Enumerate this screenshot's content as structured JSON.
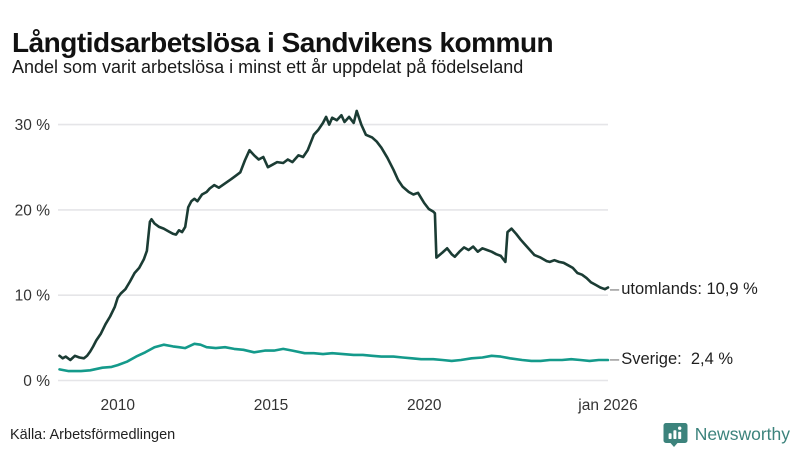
{
  "header": {
    "title": "Långtidsarbetslösa i Sandvikens kommun",
    "subtitle": "Andel som varit arbetslösa i minst ett år uppdelat på födelseland"
  },
  "footer": {
    "source": "Källa: Arbetsförmedlingen",
    "brand": "Newsworthy"
  },
  "colors": {
    "series_utomlands": "#1b3c34",
    "series_sverige": "#149a8b",
    "gridline": "#e5e5e8",
    "axis_text": "#333333",
    "brand_teal": "#3c837c",
    "label_dash": "#7a7a7a"
  },
  "chart_data": {
    "type": "line",
    "title": "Långtidsarbetslösa i Sandvikens kommun",
    "subtitle": "Andel som varit arbetslösa i minst ett år uppdelat på födelseland",
    "xlabel": "",
    "ylabel": "",
    "grid": "horizontal",
    "legend_position": "right-of-line-ends",
    "legend_dash": "–",
    "xlim": [
      2008.05,
      2026.0
    ],
    "ylim": [
      0,
      32
    ],
    "x_ticks": [
      {
        "value": 2010,
        "label": "2010"
      },
      {
        "value": 2015,
        "label": "2015"
      },
      {
        "value": 2020,
        "label": "2020"
      },
      {
        "value": 2026,
        "label": "jan 2026"
      }
    ],
    "y_ticks": [
      {
        "value": 0,
        "label": "0 %"
      },
      {
        "value": 10,
        "label": "10 %"
      },
      {
        "value": 20,
        "label": "20 %"
      },
      {
        "value": 30,
        "label": "30 %"
      }
    ],
    "series": [
      {
        "name": "utomlands",
        "label": "utomlands: 10,9 %",
        "final_value": 10.9,
        "color": "#1b3c34",
        "points": [
          [
            2008.1,
            2.9
          ],
          [
            2008.2,
            2.6
          ],
          [
            2008.3,
            2.8
          ],
          [
            2008.45,
            2.4
          ],
          [
            2008.6,
            2.9
          ],
          [
            2008.75,
            2.7
          ],
          [
            2008.9,
            2.6
          ],
          [
            2009.0,
            2.9
          ],
          [
            2009.1,
            3.4
          ],
          [
            2009.2,
            4.0
          ],
          [
            2009.3,
            4.7
          ],
          [
            2009.45,
            5.5
          ],
          [
            2009.6,
            6.6
          ],
          [
            2009.75,
            7.5
          ],
          [
            2009.9,
            8.6
          ],
          [
            2010.0,
            9.7
          ],
          [
            2010.1,
            10.2
          ],
          [
            2010.25,
            10.7
          ],
          [
            2010.4,
            11.6
          ],
          [
            2010.55,
            12.6
          ],
          [
            2010.7,
            13.2
          ],
          [
            2010.85,
            14.2
          ],
          [
            2010.95,
            15.2
          ],
          [
            2011.05,
            18.6
          ],
          [
            2011.1,
            18.9
          ],
          [
            2011.2,
            18.4
          ],
          [
            2011.35,
            18.0
          ],
          [
            2011.5,
            17.8
          ],
          [
            2011.65,
            17.5
          ],
          [
            2011.8,
            17.2
          ],
          [
            2011.9,
            17.1
          ],
          [
            2012.0,
            17.6
          ],
          [
            2012.1,
            17.4
          ],
          [
            2012.2,
            18.0
          ],
          [
            2012.3,
            20.3
          ],
          [
            2012.4,
            21.0
          ],
          [
            2012.5,
            21.3
          ],
          [
            2012.6,
            21.0
          ],
          [
            2012.75,
            21.8
          ],
          [
            2012.9,
            22.1
          ],
          [
            2013.0,
            22.5
          ],
          [
            2013.15,
            22.9
          ],
          [
            2013.3,
            22.6
          ],
          [
            2013.5,
            23.1
          ],
          [
            2013.7,
            23.6
          ],
          [
            2013.85,
            24.0
          ],
          [
            2014.0,
            24.4
          ],
          [
            2014.15,
            25.8
          ],
          [
            2014.3,
            27.0
          ],
          [
            2014.45,
            26.4
          ],
          [
            2014.6,
            25.9
          ],
          [
            2014.75,
            26.2
          ],
          [
            2014.9,
            25.0
          ],
          [
            2015.05,
            25.3
          ],
          [
            2015.2,
            25.6
          ],
          [
            2015.4,
            25.5
          ],
          [
            2015.55,
            25.9
          ],
          [
            2015.7,
            25.6
          ],
          [
            2015.9,
            26.4
          ],
          [
            2016.05,
            26.2
          ],
          [
            2016.2,
            27.0
          ],
          [
            2016.4,
            28.8
          ],
          [
            2016.55,
            29.4
          ],
          [
            2016.7,
            30.2
          ],
          [
            2016.8,
            30.9
          ],
          [
            2016.9,
            30.0
          ],
          [
            2017.0,
            30.8
          ],
          [
            2017.15,
            30.5
          ],
          [
            2017.3,
            31.1
          ],
          [
            2017.4,
            30.3
          ],
          [
            2017.55,
            30.9
          ],
          [
            2017.7,
            30.2
          ],
          [
            2017.8,
            31.6
          ],
          [
            2017.95,
            30.0
          ],
          [
            2018.1,
            28.8
          ],
          [
            2018.3,
            28.5
          ],
          [
            2018.45,
            28.0
          ],
          [
            2018.6,
            27.3
          ],
          [
            2018.8,
            26.1
          ],
          [
            2019.0,
            24.7
          ],
          [
            2019.15,
            23.5
          ],
          [
            2019.3,
            22.7
          ],
          [
            2019.5,
            22.1
          ],
          [
            2019.65,
            21.8
          ],
          [
            2019.8,
            22.0
          ],
          [
            2019.9,
            21.4
          ],
          [
            2020.0,
            20.8
          ],
          [
            2020.15,
            20.1
          ],
          [
            2020.3,
            19.8
          ],
          [
            2020.35,
            19.6
          ],
          [
            2020.4,
            14.4
          ],
          [
            2020.6,
            15.0
          ],
          [
            2020.75,
            15.5
          ],
          [
            2020.9,
            14.8
          ],
          [
            2021.0,
            14.5
          ],
          [
            2021.15,
            15.1
          ],
          [
            2021.3,
            15.6
          ],
          [
            2021.45,
            15.3
          ],
          [
            2021.6,
            15.7
          ],
          [
            2021.75,
            15.1
          ],
          [
            2021.9,
            15.5
          ],
          [
            2022.05,
            15.3
          ],
          [
            2022.2,
            15.1
          ],
          [
            2022.35,
            14.8
          ],
          [
            2022.5,
            14.6
          ],
          [
            2022.65,
            13.9
          ],
          [
            2022.72,
            17.4
          ],
          [
            2022.85,
            17.8
          ],
          [
            2023.0,
            17.2
          ],
          [
            2023.15,
            16.5
          ],
          [
            2023.3,
            15.9
          ],
          [
            2023.45,
            15.3
          ],
          [
            2023.6,
            14.7
          ],
          [
            2023.8,
            14.4
          ],
          [
            2024.0,
            14.0
          ],
          [
            2024.1,
            13.9
          ],
          [
            2024.25,
            14.1
          ],
          [
            2024.4,
            13.9
          ],
          [
            2024.55,
            13.8
          ],
          [
            2024.7,
            13.5
          ],
          [
            2024.85,
            13.2
          ],
          [
            2025.0,
            12.6
          ],
          [
            2025.15,
            12.4
          ],
          [
            2025.3,
            12.0
          ],
          [
            2025.45,
            11.5
          ],
          [
            2025.6,
            11.2
          ],
          [
            2025.75,
            10.9
          ],
          [
            2025.9,
            10.7
          ],
          [
            2026.0,
            10.9
          ]
        ]
      },
      {
        "name": "Sverige",
        "label": "Sverige:  2,4 %",
        "final_value": 2.4,
        "color": "#149a8b",
        "points": [
          [
            2008.1,
            1.3
          ],
          [
            2008.4,
            1.1
          ],
          [
            2008.8,
            1.1
          ],
          [
            2009.1,
            1.2
          ],
          [
            2009.5,
            1.5
          ],
          [
            2009.8,
            1.6
          ],
          [
            2010.0,
            1.8
          ],
          [
            2010.3,
            2.2
          ],
          [
            2010.6,
            2.8
          ],
          [
            2010.9,
            3.3
          ],
          [
            2011.2,
            3.9
          ],
          [
            2011.5,
            4.2
          ],
          [
            2011.8,
            4.0
          ],
          [
            2012.0,
            3.9
          ],
          [
            2012.2,
            3.8
          ],
          [
            2012.5,
            4.3
          ],
          [
            2012.7,
            4.2
          ],
          [
            2012.9,
            3.9
          ],
          [
            2013.2,
            3.8
          ],
          [
            2013.5,
            3.9
          ],
          [
            2013.8,
            3.7
          ],
          [
            2014.1,
            3.6
          ],
          [
            2014.45,
            3.3
          ],
          [
            2014.8,
            3.5
          ],
          [
            2015.1,
            3.5
          ],
          [
            2015.4,
            3.7
          ],
          [
            2015.7,
            3.5
          ],
          [
            2016.1,
            3.2
          ],
          [
            2016.4,
            3.2
          ],
          [
            2016.7,
            3.1
          ],
          [
            2017.0,
            3.2
          ],
          [
            2017.35,
            3.1
          ],
          [
            2017.7,
            3.0
          ],
          [
            2018.0,
            3.0
          ],
          [
            2018.3,
            2.9
          ],
          [
            2018.6,
            2.8
          ],
          [
            2019.0,
            2.8
          ],
          [
            2019.3,
            2.7
          ],
          [
            2019.6,
            2.6
          ],
          [
            2019.9,
            2.5
          ],
          [
            2020.3,
            2.5
          ],
          [
            2020.6,
            2.4
          ],
          [
            2020.9,
            2.3
          ],
          [
            2021.2,
            2.4
          ],
          [
            2021.55,
            2.6
          ],
          [
            2021.9,
            2.7
          ],
          [
            2022.2,
            2.9
          ],
          [
            2022.5,
            2.8
          ],
          [
            2022.8,
            2.6
          ],
          [
            2023.2,
            2.4
          ],
          [
            2023.5,
            2.3
          ],
          [
            2023.8,
            2.3
          ],
          [
            2024.1,
            2.4
          ],
          [
            2024.5,
            2.4
          ],
          [
            2024.8,
            2.5
          ],
          [
            2025.1,
            2.4
          ],
          [
            2025.4,
            2.3
          ],
          [
            2025.7,
            2.4
          ],
          [
            2026.0,
            2.4
          ]
        ]
      }
    ]
  }
}
